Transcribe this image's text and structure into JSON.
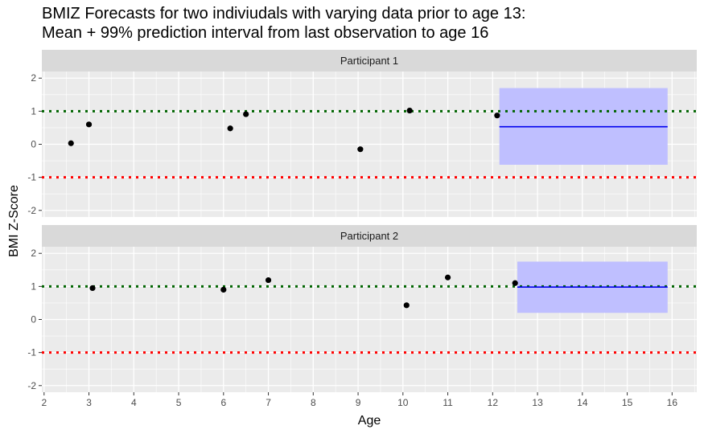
{
  "chart_data": {
    "type": "scatter",
    "title": "BMIZ Forecasts for two indiviudals with varying data prior to age 13:",
    "subtitle": "Mean + 99% prediction interval from last observation to age 16",
    "xlabel": "Age",
    "ylabel": "BMI Z-Score",
    "xlim": [
      1.95,
      16.55
    ],
    "ylim": [
      -2.2,
      2.2
    ],
    "x_ticks": [
      2,
      3,
      4,
      5,
      6,
      7,
      8,
      9,
      10,
      11,
      12,
      13,
      14,
      15,
      16
    ],
    "y_ticks": [
      -2,
      -1,
      0,
      1,
      2
    ],
    "grid": true,
    "reference_lines": [
      {
        "y": 1,
        "color": "#006400",
        "style": "dotted"
      },
      {
        "y": -1,
        "color": "#ff0000",
        "style": "dotted"
      }
    ],
    "colors": {
      "panel_bg": "#ebebeb",
      "strip_bg": "#d9d9d9",
      "grid": "#ffffff",
      "points": "#000000",
      "interval_fill": "#bfbfff",
      "forecast_mean": "#0000ee"
    },
    "panels": [
      {
        "label": "Participant 1",
        "points": [
          {
            "x": 2.6,
            "y": 0.03
          },
          {
            "x": 3.0,
            "y": 0.6
          },
          {
            "x": 6.15,
            "y": 0.48
          },
          {
            "x": 6.5,
            "y": 0.91
          },
          {
            "x": 9.05,
            "y": -0.15
          },
          {
            "x": 10.15,
            "y": 1.02
          },
          {
            "x": 12.1,
            "y": 0.87
          }
        ],
        "forecast": {
          "x_start": 12.15,
          "x_end": 15.9,
          "mean": 0.53,
          "lower": -0.62,
          "upper": 1.7
        }
      },
      {
        "label": "Participant 2",
        "points": [
          {
            "x": 3.08,
            "y": 0.95
          },
          {
            "x": 6.0,
            "y": 0.9
          },
          {
            "x": 7.0,
            "y": 1.19
          },
          {
            "x": 10.08,
            "y": 0.43
          },
          {
            "x": 11.0,
            "y": 1.27
          },
          {
            "x": 12.5,
            "y": 1.1
          }
        ],
        "forecast": {
          "x_start": 12.55,
          "x_end": 15.9,
          "mean": 0.98,
          "lower": 0.2,
          "upper": 1.75
        }
      }
    ]
  }
}
